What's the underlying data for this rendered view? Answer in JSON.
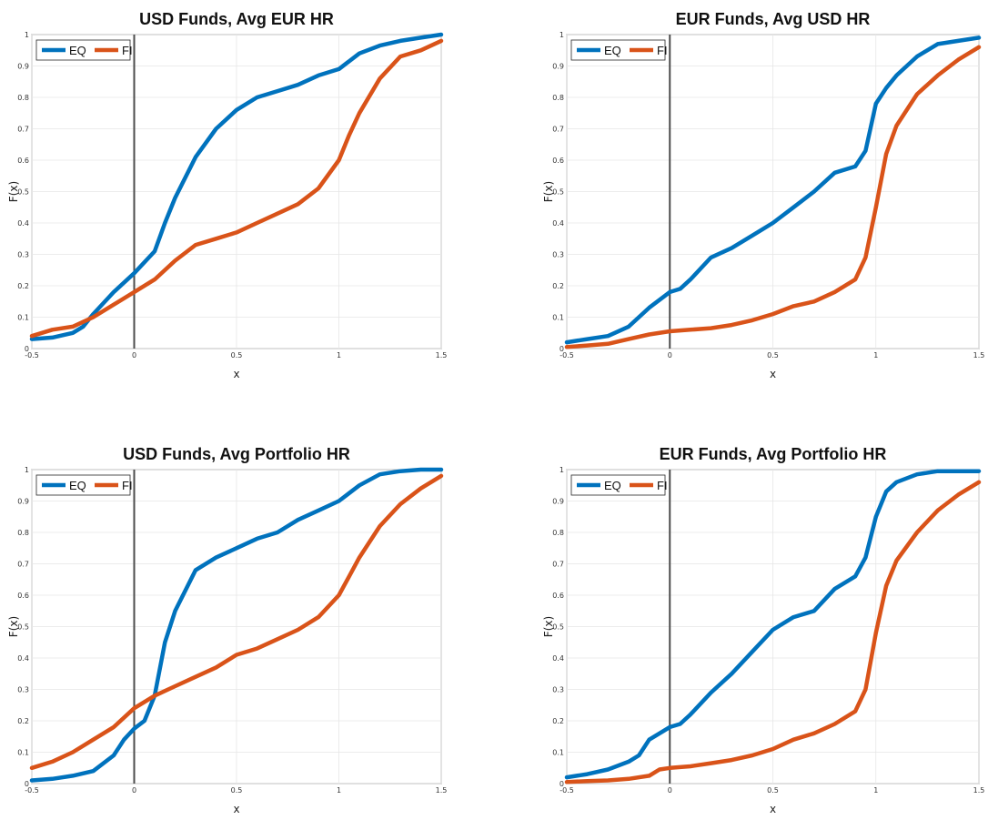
{
  "chart_data": [
    {
      "type": "line",
      "title": "USD Funds, Avg EUR HR",
      "xlabel": "x",
      "ylabel": "F(x)",
      "xlim": [
        -0.5,
        1.5
      ],
      "ylim": [
        0,
        1
      ],
      "xticks": [
        "-0.5",
        "0",
        "0.5",
        "1",
        "1.5"
      ],
      "yticks": [
        "0",
        "0.1",
        "0.2",
        "0.3",
        "0.4",
        "0.5",
        "0.6",
        "0.7",
        "0.8",
        "0.9",
        "1"
      ],
      "grid": true,
      "legend": "top-left",
      "series": [
        {
          "name": "EQ",
          "color": "#0072BD",
          "x": [
            -0.5,
            -0.4,
            -0.3,
            -0.25,
            -0.2,
            -0.1,
            0,
            0.1,
            0.15,
            0.2,
            0.3,
            0.4,
            0.5,
            0.6,
            0.7,
            0.8,
            0.9,
            1.0,
            1.1,
            1.2,
            1.3,
            1.4,
            1.5
          ],
          "y": [
            0.03,
            0.035,
            0.05,
            0.07,
            0.11,
            0.18,
            0.24,
            0.31,
            0.4,
            0.48,
            0.61,
            0.7,
            0.76,
            0.8,
            0.82,
            0.84,
            0.87,
            0.89,
            0.94,
            0.965,
            0.98,
            0.99,
            1.0
          ]
        },
        {
          "name": "FI",
          "color": "#D95319",
          "x": [
            -0.5,
            -0.4,
            -0.3,
            -0.2,
            -0.1,
            0,
            0.1,
            0.2,
            0.3,
            0.4,
            0.5,
            0.6,
            0.7,
            0.8,
            0.9,
            1.0,
            1.05,
            1.1,
            1.2,
            1.3,
            1.4,
            1.5
          ],
          "y": [
            0.04,
            0.06,
            0.07,
            0.1,
            0.14,
            0.18,
            0.22,
            0.28,
            0.33,
            0.35,
            0.37,
            0.4,
            0.43,
            0.46,
            0.51,
            0.6,
            0.68,
            0.75,
            0.86,
            0.93,
            0.95,
            0.98
          ]
        }
      ]
    },
    {
      "type": "line",
      "title": "EUR Funds, Avg USD HR",
      "xlabel": "x",
      "ylabel": "F(x)",
      "xlim": [
        -0.5,
        1.5
      ],
      "ylim": [
        0,
        1
      ],
      "xticks": [
        "-0.5",
        "0",
        "0.5",
        "1",
        "1.5"
      ],
      "yticks": [
        "0",
        "0.1",
        "0.2",
        "0.3",
        "0.4",
        "0.5",
        "0.6",
        "0.7",
        "0.8",
        "0.9",
        "1"
      ],
      "grid": true,
      "legend": "top-left",
      "series": [
        {
          "name": "EQ",
          "color": "#0072BD",
          "x": [
            -0.5,
            -0.4,
            -0.3,
            -0.2,
            -0.1,
            0,
            0.05,
            0.1,
            0.2,
            0.3,
            0.4,
            0.5,
            0.6,
            0.7,
            0.8,
            0.9,
            0.95,
            1.0,
            1.05,
            1.1,
            1.2,
            1.3,
            1.4,
            1.5
          ],
          "y": [
            0.02,
            0.03,
            0.04,
            0.07,
            0.13,
            0.18,
            0.19,
            0.22,
            0.29,
            0.32,
            0.36,
            0.4,
            0.45,
            0.5,
            0.56,
            0.58,
            0.63,
            0.78,
            0.83,
            0.87,
            0.93,
            0.97,
            0.98,
            0.99
          ]
        },
        {
          "name": "FI",
          "color": "#D95319",
          "x": [
            -0.5,
            -0.4,
            -0.3,
            -0.2,
            -0.1,
            0,
            0.1,
            0.2,
            0.3,
            0.4,
            0.5,
            0.6,
            0.7,
            0.8,
            0.9,
            0.95,
            1.0,
            1.05,
            1.1,
            1.2,
            1.3,
            1.4,
            1.5
          ],
          "y": [
            0.005,
            0.01,
            0.015,
            0.03,
            0.045,
            0.055,
            0.06,
            0.065,
            0.075,
            0.09,
            0.11,
            0.135,
            0.15,
            0.18,
            0.22,
            0.29,
            0.45,
            0.62,
            0.71,
            0.81,
            0.87,
            0.92,
            0.96
          ]
        }
      ]
    },
    {
      "type": "line",
      "title": "USD Funds, Avg Portfolio HR",
      "xlabel": "x",
      "ylabel": "F(x)",
      "xlim": [
        -0.5,
        1.5
      ],
      "ylim": [
        0,
        1
      ],
      "xticks": [
        "-0.5",
        "0",
        "0.5",
        "1",
        "1.5"
      ],
      "yticks": [
        "0",
        "0.1",
        "0.2",
        "0.3",
        "0.4",
        "0.5",
        "0.6",
        "0.7",
        "0.8",
        "0.9",
        "1"
      ],
      "grid": true,
      "legend": "top-left",
      "series": [
        {
          "name": "EQ",
          "color": "#0072BD",
          "x": [
            -0.5,
            -0.4,
            -0.3,
            -0.2,
            -0.1,
            -0.05,
            0,
            0.05,
            0.1,
            0.15,
            0.2,
            0.3,
            0.4,
            0.5,
            0.6,
            0.7,
            0.8,
            0.9,
            1.0,
            1.1,
            1.2,
            1.3,
            1.4,
            1.5
          ],
          "y": [
            0.01,
            0.015,
            0.025,
            0.04,
            0.09,
            0.14,
            0.175,
            0.2,
            0.28,
            0.45,
            0.55,
            0.68,
            0.72,
            0.75,
            0.78,
            0.8,
            0.84,
            0.87,
            0.9,
            0.95,
            0.985,
            0.995,
            1.0,
            1.0
          ]
        },
        {
          "name": "FI",
          "color": "#D95319",
          "x": [
            -0.5,
            -0.4,
            -0.3,
            -0.2,
            -0.1,
            0,
            0.1,
            0.2,
            0.3,
            0.4,
            0.5,
            0.6,
            0.7,
            0.8,
            0.9,
            1.0,
            1.05,
            1.1,
            1.2,
            1.3,
            1.4,
            1.5
          ],
          "y": [
            0.05,
            0.07,
            0.1,
            0.14,
            0.18,
            0.24,
            0.28,
            0.31,
            0.34,
            0.37,
            0.41,
            0.43,
            0.46,
            0.49,
            0.53,
            0.6,
            0.66,
            0.72,
            0.82,
            0.89,
            0.94,
            0.98
          ]
        }
      ]
    },
    {
      "type": "line",
      "title": "EUR Funds, Avg Portfolio HR",
      "xlabel": "x",
      "ylabel": "F(x)",
      "xlim": [
        -0.5,
        1.5
      ],
      "ylim": [
        0,
        1
      ],
      "xticks": [
        "-0.5",
        "0",
        "0.5",
        "1",
        "1.5"
      ],
      "yticks": [
        "0",
        "0.1",
        "0.2",
        "0.3",
        "0.4",
        "0.5",
        "0.6",
        "0.7",
        "0.8",
        "0.9",
        "1"
      ],
      "grid": true,
      "legend": "top-left",
      "series": [
        {
          "name": "EQ",
          "color": "#0072BD",
          "x": [
            -0.5,
            -0.4,
            -0.3,
            -0.2,
            -0.15,
            -0.1,
            0,
            0.05,
            0.1,
            0.2,
            0.3,
            0.4,
            0.5,
            0.6,
            0.7,
            0.8,
            0.9,
            0.95,
            1.0,
            1.05,
            1.1,
            1.2,
            1.3,
            1.4,
            1.5
          ],
          "y": [
            0.02,
            0.03,
            0.045,
            0.07,
            0.09,
            0.14,
            0.18,
            0.19,
            0.22,
            0.29,
            0.35,
            0.42,
            0.49,
            0.53,
            0.55,
            0.62,
            0.66,
            0.72,
            0.85,
            0.93,
            0.96,
            0.985,
            0.995,
            0.995,
            0.995
          ]
        },
        {
          "name": "FI",
          "color": "#D95319",
          "x": [
            -0.5,
            -0.4,
            -0.3,
            -0.2,
            -0.1,
            -0.05,
            0,
            0.1,
            0.2,
            0.3,
            0.4,
            0.5,
            0.6,
            0.7,
            0.8,
            0.9,
            0.95,
            1.0,
            1.05,
            1.1,
            1.2,
            1.3,
            1.4,
            1.5
          ],
          "y": [
            0.005,
            0.008,
            0.01,
            0.015,
            0.025,
            0.045,
            0.05,
            0.055,
            0.065,
            0.075,
            0.09,
            0.11,
            0.14,
            0.16,
            0.19,
            0.23,
            0.3,
            0.48,
            0.63,
            0.71,
            0.8,
            0.87,
            0.92,
            0.96
          ]
        }
      ]
    }
  ]
}
